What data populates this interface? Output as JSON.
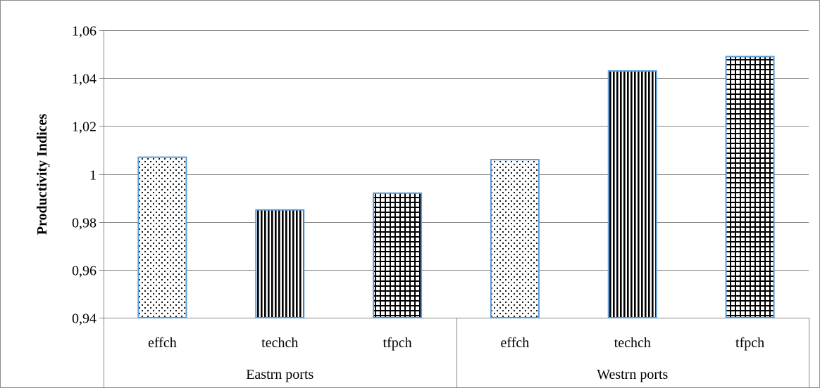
{
  "chart_data": {
    "type": "bar",
    "ylabel": "Productivity Indices",
    "xlabel": "",
    "ylim": [
      0.94,
      1.06
    ],
    "yticks": [
      0.94,
      0.96,
      0.98,
      1.0,
      1.02,
      1.04,
      1.06
    ],
    "ytick_labels": [
      "0,94",
      "0,96",
      "0,98",
      "1",
      "1,02",
      "1,04",
      "1,06"
    ],
    "grid": true,
    "legend": "none",
    "groups": [
      {
        "name": "Eastrn ports",
        "bars": [
          {
            "label": "effch",
            "value": 1.007,
            "pattern": "dots"
          },
          {
            "label": "techch",
            "value": 0.985,
            "pattern": "vertical"
          },
          {
            "label": "tfpch",
            "value": 0.992,
            "pattern": "grid"
          }
        ]
      },
      {
        "name": "Westrn ports",
        "bars": [
          {
            "label": "effch",
            "value": 1.006,
            "pattern": "dots"
          },
          {
            "label": "techch",
            "value": 1.043,
            "pattern": "vertical"
          },
          {
            "label": "tfpch",
            "value": 1.049,
            "pattern": "grid"
          }
        ]
      }
    ],
    "colors": {
      "bar_border": "#5b9bd5",
      "grid": "#868686",
      "frame": "#8c8c8c"
    }
  }
}
